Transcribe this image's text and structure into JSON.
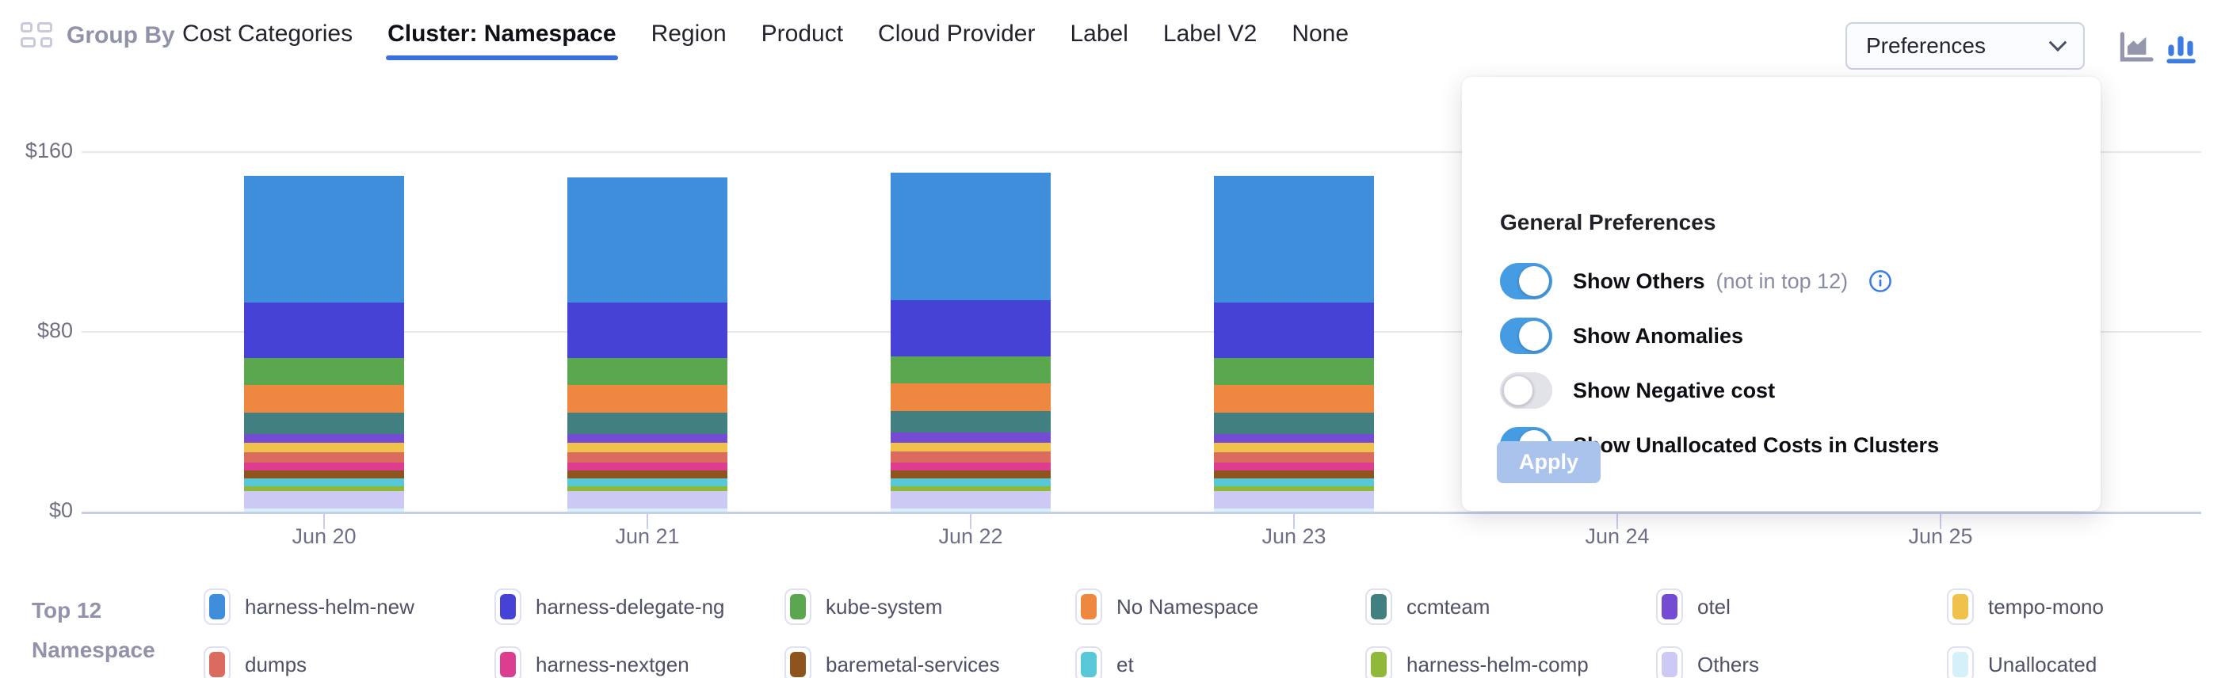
{
  "toolbar": {
    "group_by": {
      "label": "Group By"
    },
    "tabs": [
      {
        "label": "Cost Categories",
        "active": false
      },
      {
        "label": "Cluster: Namespace",
        "active": true
      },
      {
        "label": "Region",
        "active": false
      },
      {
        "label": "Product",
        "active": false
      },
      {
        "label": "Cloud Provider",
        "active": false
      },
      {
        "label": "Label",
        "active": false
      },
      {
        "label": "Label V2",
        "active": false
      },
      {
        "label": "None",
        "active": false
      }
    ],
    "preferences": {
      "label": "Preferences"
    },
    "chart_types": {
      "area_selected": false,
      "bar_selected": true,
      "selected_color": "#3C7CE0",
      "unselected_color": "#9496AD"
    }
  },
  "preferences_panel": {
    "title": "General Preferences",
    "toggles": [
      {
        "label": "Show Others",
        "suffix": "(not in top 12)",
        "has_info": true,
        "on": true
      },
      {
        "label": "Show Anomalies",
        "suffix": "",
        "has_info": false,
        "on": true
      },
      {
        "label": "Show Negative cost",
        "suffix": "",
        "has_info": false,
        "on": false
      },
      {
        "label": "Show Unallocated Costs in Clusters",
        "suffix": "",
        "has_info": false,
        "on": true
      }
    ],
    "apply_label": "Apply",
    "colors": {
      "toggle_on": "#469CE3",
      "toggle_off": "#E1E3E9",
      "apply_bg": "#A9C3EC",
      "info_icon": "#3B7CE3"
    }
  },
  "chart_data": {
    "type": "bar",
    "stacked": true,
    "unit": "USD",
    "ylim": [
      0,
      160
    ],
    "grid": "horizontal",
    "legend_position": "bottom",
    "y_ticks": [
      {
        "label": "$160",
        "value": 160
      },
      {
        "label": "$80",
        "value": 80
      },
      {
        "label": "$0",
        "value": 0
      }
    ],
    "x_labels": [
      "Jun 20",
      "Jun 21",
      "Jun 22",
      "Jun 23",
      "Jun 24",
      "Jun 25"
    ],
    "bar_days": [
      "Jun 20",
      "Jun 21",
      "Jun 22",
      "Jun 23"
    ],
    "series": [
      {
        "name": "harness-helm-new",
        "color": "#3E8EDC",
        "values": [
          56.3,
          55.9,
          57.0,
          56.4
        ]
      },
      {
        "name": "harness-delegate-ng",
        "color": "#4742D6",
        "values": [
          24.6,
          24.5,
          24.8,
          24.6
        ]
      },
      {
        "name": "kube-system",
        "color": "#5AA750",
        "values": [
          12.0,
          12.0,
          12.1,
          12.0
        ]
      },
      {
        "name": "No Namespace",
        "color": "#EE8740",
        "values": [
          12.3,
          12.2,
          12.4,
          12.3
        ]
      },
      {
        "name": "ccmteam",
        "color": "#417F80",
        "values": [
          9.5,
          9.5,
          9.6,
          9.5
        ]
      },
      {
        "name": "otel",
        "color": "#764BD4",
        "values": [
          4.2,
          4.2,
          4.3,
          4.2
        ]
      },
      {
        "name": "tempo-mono",
        "color": "#F0C14B",
        "values": [
          4.2,
          4.2,
          4.2,
          4.2
        ]
      },
      {
        "name": "dumps",
        "color": "#DB6A5F",
        "values": [
          4.6,
          4.6,
          4.7,
          4.6
        ]
      },
      {
        "name": "harness-nextgen",
        "color": "#DC3D8F",
        "values": [
          3.5,
          3.5,
          3.6,
          3.5
        ]
      },
      {
        "name": "baremetal-services",
        "color": "#8F531D",
        "values": [
          3.5,
          3.5,
          3.5,
          3.5
        ]
      },
      {
        "name": "et",
        "color": "#58C7D8",
        "values": [
          3.5,
          3.5,
          3.5,
          3.5
        ]
      },
      {
        "name": "harness-helm-comp",
        "color": "#90B93C",
        "values": [
          2.1,
          2.1,
          2.1,
          2.1
        ]
      },
      {
        "name": "Others",
        "color": "#CCC9F4",
        "values": [
          7.7,
          7.7,
          7.8,
          7.7
        ]
      },
      {
        "name": "Unallocated",
        "color": "#D6F0FA",
        "values": [
          1.4,
          1.4,
          1.4,
          1.4
        ]
      }
    ]
  },
  "legend": {
    "title_line1": "Top 12",
    "title_line2": "Namespace"
  }
}
